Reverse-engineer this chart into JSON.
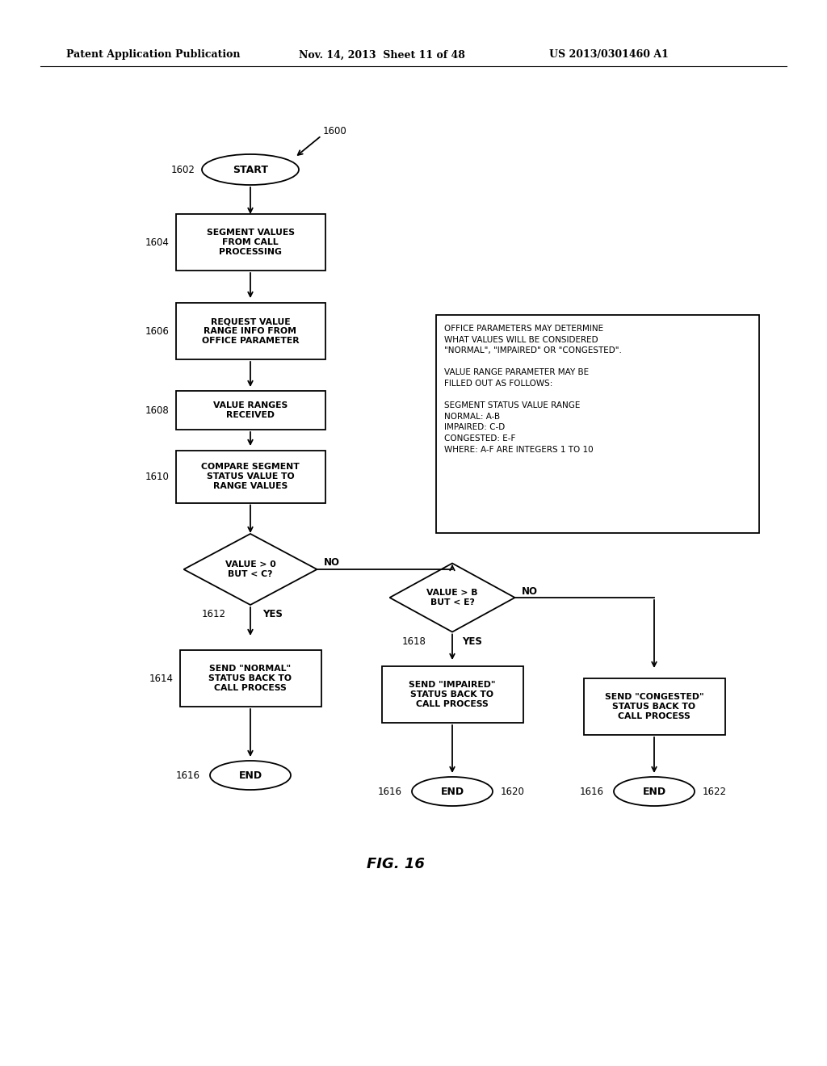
{
  "bg_color": "#ffffff",
  "header_text1": "Patent Application Publication",
  "header_text2": "Nov. 14, 2013  Sheet 11 of 48",
  "header_text3": "US 2013/0301460 A1",
  "fig_label": "FIG. 16",
  "line_color": "#000000",
  "text_color": "#000000"
}
